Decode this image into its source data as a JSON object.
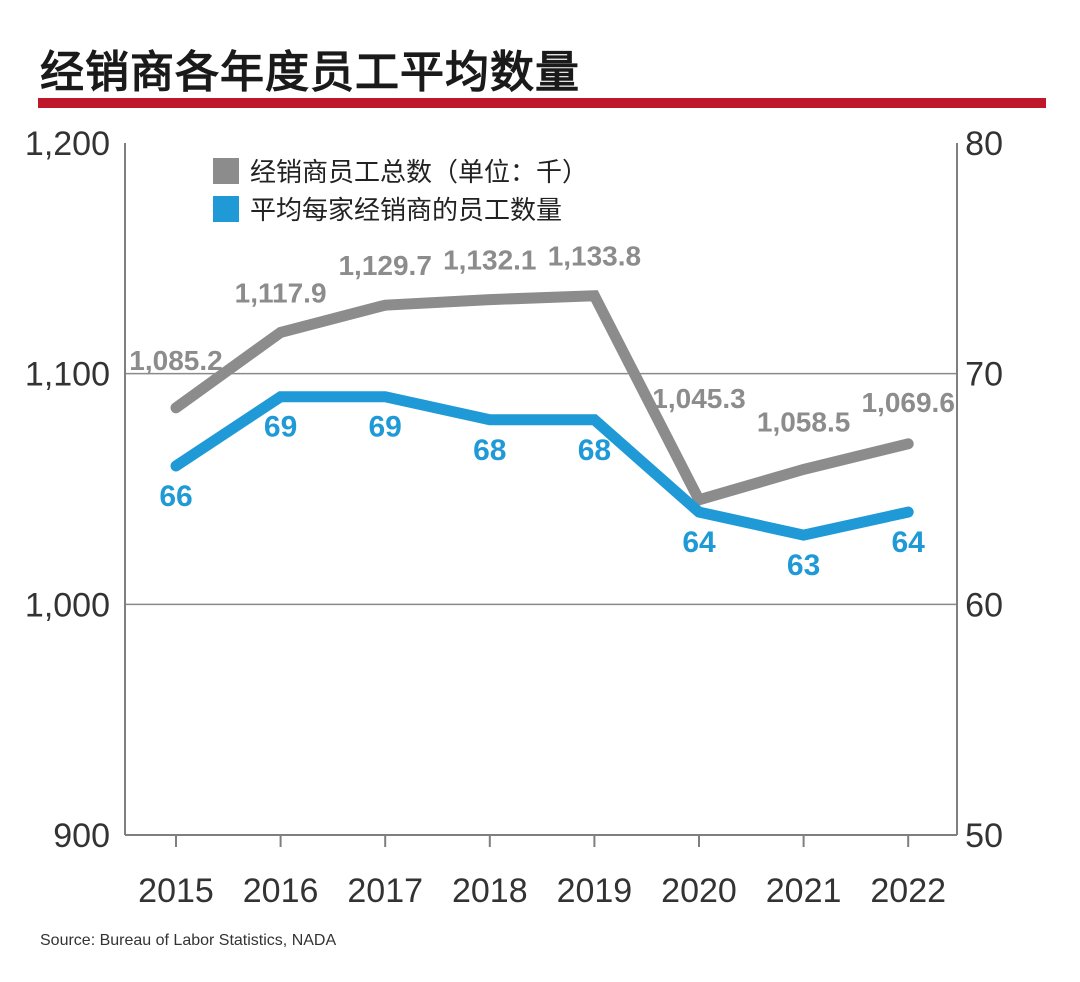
{
  "title": "经销商各年度员工平均数量",
  "source": "Source: Bureau of Labor Statistics, NADA",
  "colors": {
    "accent_rule": "#c0182b",
    "total_series": "#8c8c8c",
    "per_dealer_series": "#1f9ad6",
    "axis": "#7f7f7f"
  },
  "chart_data": {
    "type": "line",
    "categories": [
      "2015",
      "2016",
      "2017",
      "2018",
      "2019",
      "2020",
      "2021",
      "2022"
    ],
    "y_left": {
      "ylim": [
        900,
        1200
      ],
      "ticks": [
        "900",
        "1,000",
        "1,100",
        "1,200"
      ],
      "tick_values": [
        900,
        1000,
        1100,
        1200
      ]
    },
    "y_right": {
      "ylim": [
        50,
        80
      ],
      "ticks": [
        "50",
        "60",
        "70",
        "80"
      ],
      "tick_values": [
        50,
        60,
        70,
        80
      ]
    },
    "grid": "horizontal at 1,000 and 1,100",
    "legend_placement": "top-left",
    "series": [
      {
        "name": "经销商员工总数（单位：千）",
        "axis": "left",
        "color": "#8c8c8c",
        "values": [
          1085.2,
          1117.9,
          1129.7,
          1132.1,
          1133.8,
          1045.3,
          1058.5,
          1069.6
        ],
        "labels": [
          "1,085.2",
          "1,117.9",
          "1,129.7",
          "1,132.1",
          "1,133.8",
          "1,045.3",
          "1,058.5",
          "1,069.6"
        ]
      },
      {
        "name": "平均每家经销商的员工数量",
        "axis": "right",
        "color": "#1f9ad6",
        "values": [
          66,
          69,
          69,
          68,
          68,
          64,
          63,
          64
        ],
        "labels": [
          "66",
          "69",
          "69",
          "68",
          "68",
          "64",
          "63",
          "64"
        ]
      }
    ]
  }
}
